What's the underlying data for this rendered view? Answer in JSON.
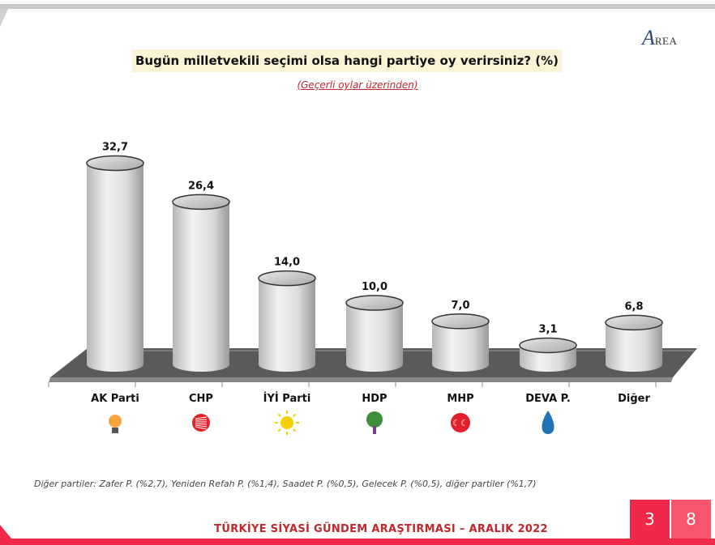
{
  "logo": {
    "text": "AREA"
  },
  "chart_data": {
    "type": "bar",
    "title": "Bugün milletvekili seçimi olsa hangi partiye oy verirsiniz? (%)",
    "subtitle": "(Geçerli oylar üzerinden)",
    "categories": [
      "AK Parti",
      "CHP",
      "İYİ Parti",
      "HDP",
      "MHP",
      "DEVA P.",
      "Diğer"
    ],
    "values": [
      32.7,
      26.4,
      14.0,
      10.0,
      7.0,
      3.1,
      6.8
    ],
    "data_labels": [
      "32,7",
      "26,4",
      "14,0",
      "10,0",
      "7,0",
      "3,1",
      "6,8"
    ],
    "icons": [
      "ak-parti-lightbulb-icon",
      "chp-six-arrows-icon",
      "iyi-parti-sun-icon",
      "hdp-tree-icon",
      "mhp-crescents-icon",
      "deva-drop-icon",
      ""
    ],
    "style": "3d-cylinder",
    "grid": false,
    "legend": "none"
  },
  "footnote": "Diğer partiler: Zafer P. (%2,7), Yeniden Refah P. (%1,4), Saadet P. (%0,5), Gelecek P. (%0,5), diğer partiler (%1,7)",
  "footer": "TÜRKİYE SİYASİ GÜNDEM ARAŞTIRMASI – ARALIK 2022",
  "page": {
    "digit1": "3",
    "digit2": "8"
  },
  "colors": {
    "accent": "#f0294a",
    "title_bg": "#fbf3d6",
    "subtitle": "#c0282d"
  }
}
